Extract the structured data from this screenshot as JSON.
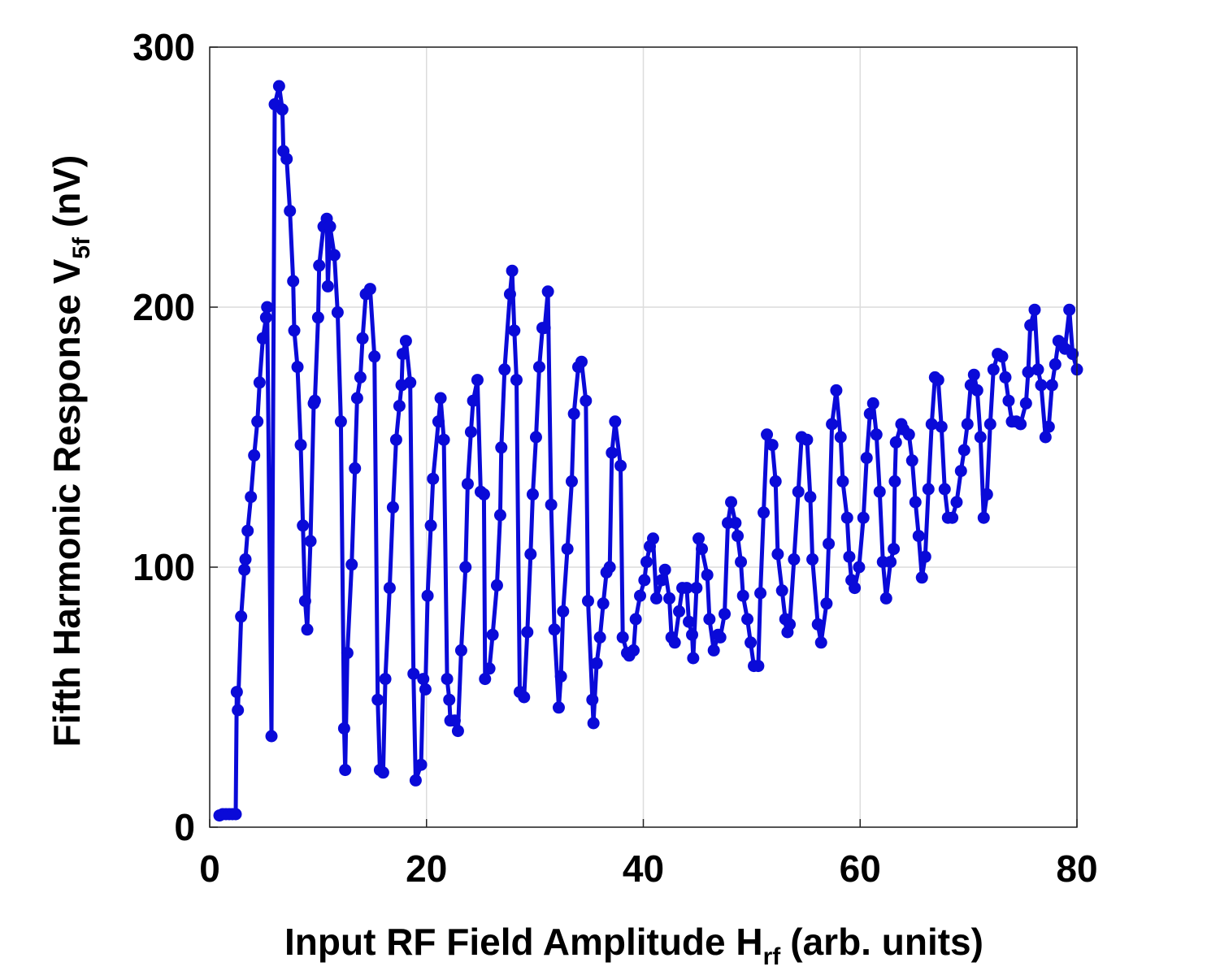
{
  "chart_data": {
    "type": "line",
    "xlabel": {
      "text": "Input RF Field Amplitude H",
      "sub": "rf",
      "after": "(arb. units)"
    },
    "ylabel": {
      "text": "Fifth Harmonic Response V",
      "sub": "5f",
      "after": "(nV)"
    },
    "xlim": [
      0,
      80
    ],
    "xticks": [
      0,
      20,
      40,
      60,
      80
    ],
    "ylim": [
      0,
      300
    ],
    "yticks": [
      0,
      100,
      200,
      300
    ],
    "grid": true,
    "x": [
      0.9,
      1.2,
      1.5,
      1.8,
      2.1,
      2.4,
      2.5,
      2.6,
      2.9,
      3.2,
      3.3,
      3.5,
      3.8,
      4.1,
      4.4,
      4.6,
      4.9,
      5.2,
      5.3,
      5.7,
      6.0,
      6.4,
      6.7,
      6.8,
      7.1,
      7.4,
      7.7,
      7.8,
      8.1,
      8.4,
      8.6,
      8.8,
      9.0,
      9.3,
      9.6,
      9.7,
      10.0,
      10.1,
      10.5,
      10.8,
      10.9,
      11.1,
      11.5,
      11.8,
      12.1,
      12.4,
      12.5,
      12.7,
      13.1,
      13.4,
      13.6,
      13.9,
      14.1,
      14.4,
      14.8,
      15.2,
      15.5,
      15.7,
      16.0,
      16.2,
      16.6,
      16.9,
      17.2,
      17.5,
      17.7,
      17.8,
      18.1,
      18.5,
      18.8,
      19.0,
      19.5,
      19.7,
      19.9,
      20.1,
      20.4,
      20.6,
      21.1,
      21.3,
      21.6,
      21.9,
      22.1,
      22.2,
      22.6,
      22.9,
      23.2,
      23.6,
      23.8,
      24.1,
      24.3,
      24.7,
      25.0,
      25.3,
      25.4,
      25.8,
      26.1,
      26.5,
      26.8,
      26.9,
      27.2,
      27.7,
      27.9,
      28.1,
      28.3,
      28.6,
      29.0,
      29.3,
      29.6,
      29.8,
      30.1,
      30.4,
      30.7,
      30.9,
      31.2,
      31.5,
      31.8,
      32.2,
      32.4,
      32.6,
      33.0,
      33.4,
      33.6,
      34.0,
      34.3,
      34.7,
      34.9,
      35.3,
      35.4,
      35.7,
      36.0,
      36.3,
      36.6,
      36.9,
      37.1,
      37.4,
      37.9,
      38.1,
      38.5,
      38.7,
      39.1,
      39.3,
      39.7,
      40.1,
      40.3,
      40.6,
      40.9,
      41.2,
      41.7,
      42.0,
      42.4,
      42.6,
      42.9,
      43.3,
      43.6,
      44.0,
      44.2,
      44.5,
      44.6,
      44.9,
      45.1,
      45.4,
      45.9,
      46.1,
      46.5,
      46.9,
      47.1,
      47.5,
      47.8,
      48.1,
      48.5,
      48.7,
      49.0,
      49.2,
      49.6,
      49.9,
      50.2,
      50.6,
      50.8,
      51.1,
      51.4,
      51.9,
      52.2,
      52.4,
      52.8,
      53.1,
      53.3,
      53.5,
      53.9,
      54.3,
      54.6,
      55.1,
      55.4,
      55.6,
      56.1,
      56.4,
      56.9,
      57.1,
      57.4,
      57.8,
      58.2,
      58.4,
      58.8,
      59.0,
      59.2,
      59.5,
      59.9,
      60.3,
      60.6,
      60.9,
      61.2,
      61.5,
      61.8,
      62.1,
      62.4,
      62.8,
      63.1,
      63.2,
      63.3,
      63.8,
      64.0,
      64.5,
      64.8,
      65.1,
      65.4,
      65.7,
      66.0,
      66.3,
      66.6,
      66.9,
      67.2,
      67.5,
      67.8,
      68.1,
      68.5,
      68.9,
      69.3,
      69.6,
      69.9,
      70.2,
      70.5,
      70.8,
      71.1,
      71.4,
      71.7,
      72.0,
      72.3,
      72.7,
      73.1,
      73.4,
      73.7,
      74.0,
      74.4,
      74.8,
      75.3,
      75.5,
      75.7,
      76.1,
      76.4,
      76.7,
      77.1,
      77.4,
      77.7,
      78.0,
      78.3,
      78.6,
      78.9,
      79.3,
      79.6,
      80.0
    ],
    "series": [
      {
        "color": "#0a0ad8",
        "values": [
          4.5,
          5,
          5,
          5,
          5,
          5,
          52,
          45,
          81,
          99,
          103,
          114,
          127,
          143,
          156,
          171,
          188,
          196,
          200,
          35,
          278,
          285,
          276,
          260,
          257,
          237,
          210,
          191,
          177,
          147,
          116,
          87,
          76,
          110,
          163,
          164,
          196,
          216,
          231,
          234,
          208,
          231,
          220,
          198,
          156,
          38,
          22,
          67,
          101,
          138,
          165,
          173,
          188,
          205,
          207,
          181,
          49,
          22,
          21,
          57,
          92,
          123,
          149,
          162,
          170,
          182,
          187,
          171,
          59,
          18,
          24,
          57,
          53,
          89,
          116,
          134,
          156,
          165,
          149,
          57,
          49,
          41,
          41,
          37,
          68,
          100,
          132,
          152,
          164,
          172,
          129,
          128,
          57,
          61,
          74,
          93,
          120,
          146,
          176,
          205,
          214,
          191,
          172,
          52,
          50,
          75,
          105,
          128,
          150,
          177,
          192,
          192,
          206,
          124,
          76,
          46,
          58,
          83,
          107,
          133,
          159,
          177,
          179,
          164,
          87,
          49,
          40,
          63,
          73,
          86,
          98,
          100,
          144,
          156,
          139,
          73,
          67,
          66,
          68,
          80,
          89,
          95,
          102,
          108,
          111,
          88,
          95,
          99,
          88,
          73,
          71,
          83,
          92,
          92,
          79,
          74,
          65,
          92,
          111,
          107,
          97,
          80,
          68,
          74,
          73,
          82,
          117,
          125,
          117,
          112,
          102,
          89,
          80,
          71,
          62,
          62,
          90,
          121,
          151,
          147,
          133,
          105,
          91,
          80,
          75,
          78,
          103,
          129,
          150,
          149,
          127,
          103,
          78,
          71,
          86,
          109,
          155,
          168,
          150,
          133,
          119,
          104,
          95,
          92,
          100,
          119,
          142,
          159,
          163,
          151,
          129,
          102,
          88,
          102,
          107,
          133,
          148,
          155,
          153,
          151,
          141,
          125,
          112,
          96,
          104,
          130,
          155,
          173,
          172,
          154,
          130,
          119,
          119,
          125,
          137,
          145,
          155,
          170,
          174,
          168,
          150,
          119,
          128,
          155,
          176,
          182,
          181,
          173,
          164,
          156,
          156,
          155,
          163,
          175,
          193,
          199,
          176,
          170,
          150,
          154,
          170,
          178,
          187,
          186,
          184,
          199,
          182,
          176
        ]
      }
    ]
  }
}
